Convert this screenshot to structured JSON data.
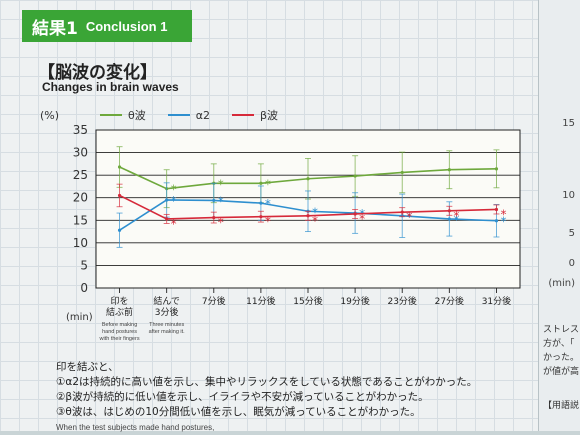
{
  "header": {
    "badge_jp": "結果1",
    "badge_en": "Conclusion 1"
  },
  "title": {
    "jp": "【脳波の変化】",
    "en": "Changes in brain waves"
  },
  "chart_data": {
    "type": "line",
    "ylabel": "(%)",
    "xlabel": "(min)",
    "ylim": [
      0,
      35
    ],
    "yticks": [
      0,
      5,
      10,
      15,
      20,
      25,
      30,
      35
    ],
    "grid": true,
    "legend_position": "top",
    "categories": [
      {
        "jp": "印を\n結ぶ前",
        "en": "Before making\nhand postures\nwith their fingers"
      },
      {
        "jp": "結んで\n3分後",
        "en": "Three minutes\nafter making it."
      },
      {
        "jp": "7分後",
        "en": ""
      },
      {
        "jp": "11分後",
        "en": ""
      },
      {
        "jp": "15分後",
        "en": ""
      },
      {
        "jp": "19分後",
        "en": ""
      },
      {
        "jp": "23分後",
        "en": ""
      },
      {
        "jp": "27分後",
        "en": ""
      },
      {
        "jp": "31分後",
        "en": ""
      }
    ],
    "series": [
      {
        "name": "θ波",
        "color": "#6ea83c",
        "values": [
          26.8,
          22.0,
          23.2,
          23.2,
          24.2,
          24.8,
          25.6,
          26.2,
          26.4
        ],
        "errors": [
          4.5,
          4.2,
          4.3,
          4.3,
          4.5,
          4.5,
          4.5,
          4.2,
          4.2
        ],
        "stars": [
          false,
          true,
          true,
          true,
          false,
          false,
          false,
          false,
          false
        ]
      },
      {
        "name": "α2",
        "color": "#2e8fcf",
        "values": [
          12.8,
          19.5,
          19.4,
          18.8,
          17.0,
          16.6,
          16.0,
          15.3,
          14.9
        ],
        "errors": [
          3.8,
          3.8,
          3.8,
          3.8,
          4.5,
          4.5,
          4.8,
          3.8,
          3.6
        ],
        "stars": [
          false,
          true,
          true,
          true,
          true,
          true,
          true,
          true,
          true
        ]
      },
      {
        "name": "β波",
        "color": "#d62a3a",
        "values": [
          20.5,
          15.3,
          15.6,
          15.8,
          16.0,
          16.4,
          16.8,
          17.1,
          17.4
        ],
        "errors": [
          2.5,
          1.0,
          1.2,
          1.2,
          1.0,
          1.0,
          1.0,
          1.0,
          1.0
        ],
        "stars": [
          false,
          true,
          true,
          true,
          true,
          true,
          true,
          true,
          true
        ]
      }
    ],
    "star_symbol": "*"
  },
  "notes": {
    "intro": "印を結ぶと、",
    "items": [
      "①α2は持続的に高い値を示し、集中やリラックスをしている状態であることがわかった。",
      "②β波が持続的に低い値を示し、イライラや不安が減っていることがわかった。",
      "③θ波は、はじめの10分間低い値を示し、眠気が減っていることがわかった。"
    ],
    "english_fragment": "When the test subjects made hand postures,"
  },
  "side_panel": {
    "ticks": [
      "15",
      "10",
      "5",
      "0"
    ],
    "min_label": "(min)",
    "texts": [
      "ストレス",
      "方が、「",
      "かった。",
      "が値が高",
      "【用語説"
    ]
  }
}
